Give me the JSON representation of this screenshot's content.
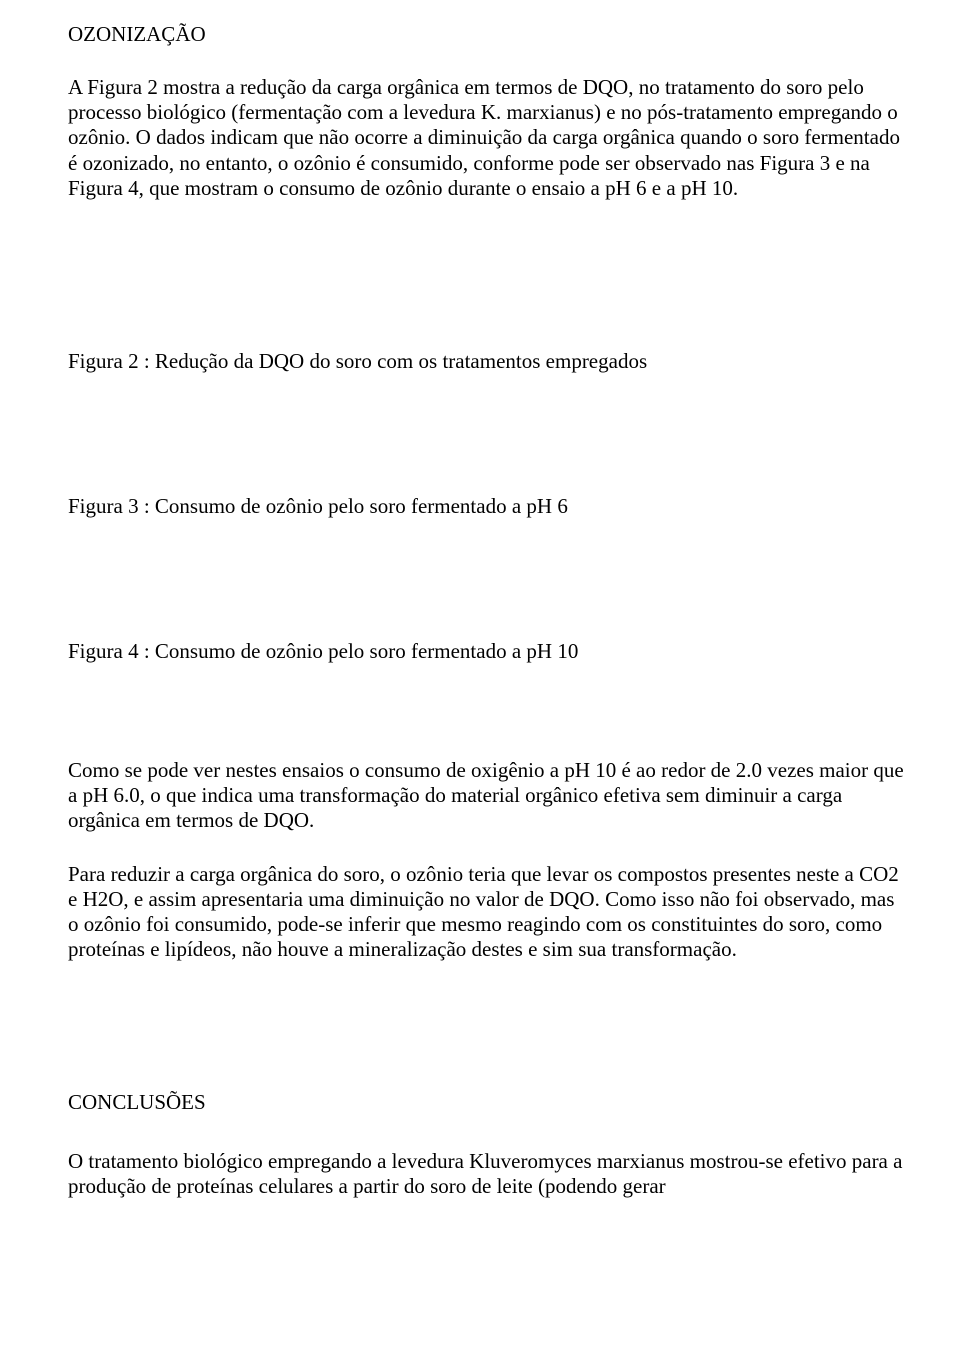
{
  "headings": {
    "ozonizacao": "OZONIZAÇÃO",
    "conclusoes": "CONCLUSÕES"
  },
  "paragraphs": {
    "p1": "A Figura 2 mostra a redução da carga orgânica em termos de DQO, no tratamento do soro pelo processo biológico (fermentação com a levedura K. marxianus) e no pós-tratamento empregando o ozônio. O dados indicam que não ocorre a diminuição da carga orgânica quando o soro fermentado é ozonizado, no entanto, o ozônio é consumido, conforme pode ser observado nas Figura 3 e na Figura 4, que mostram o consumo de ozônio durante o ensaio a pH 6 e a pH 10.",
    "p2": "Como se pode ver nestes ensaios o consumo de oxigênio a pH 10 é ao redor de 2.0 vezes maior que a pH 6.0, o que indica uma transformação do material orgânico efetiva sem diminuir a carga orgânica em termos de DQO.",
    "p3": "Para reduzir a carga orgânica do soro, o ozônio teria que levar os compostos presentes neste a CO2 e H2O, e assim apresentaria uma diminuição no valor de DQO. Como isso não foi observado, mas o ozônio foi consumido, pode-se inferir que mesmo reagindo com os constituintes do soro, como proteínas e lipídeos, não houve a mineralização destes e sim sua transformação.",
    "p4": "O tratamento biológico empregando a levedura Kluveromyces marxianus mostrou-se efetivo para a produção de proteínas celulares a partir do soro de leite (podendo gerar"
  },
  "figures": {
    "fig2": "Figura 2 : Redução da DQO do soro com os tratamentos empregados",
    "fig3": "Figura 3 : Consumo de ozônio pelo soro fermentado a pH 6",
    "fig4": "Figura 4 : Consumo de ozônio pelo soro fermentado a pH 10"
  }
}
